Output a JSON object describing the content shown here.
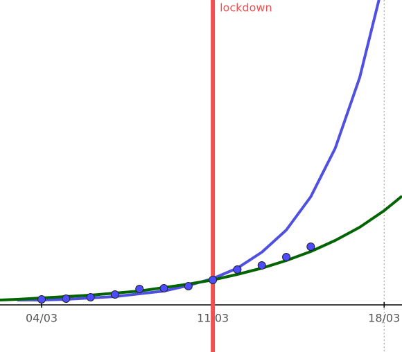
{
  "chart_data": {
    "type": "line",
    "xlim": [
      2.3,
      18.73
    ],
    "ylim": [
      -68,
      440
    ],
    "xticks": [
      {
        "value": 4,
        "label": "04/03"
      },
      {
        "value": 11,
        "label": "11/03"
      },
      {
        "value": 18,
        "label": "18/03"
      }
    ],
    "guide_x": 18,
    "axis_color": "#000000",
    "series": [
      {
        "style": "line",
        "color": "#5050e0",
        "x": [
          3,
          4,
          5,
          6,
          7,
          8,
          9,
          10,
          11,
          12,
          13,
          14,
          15,
          16,
          17,
          17.8
        ],
        "values": [
          7,
          7,
          8,
          10,
          12,
          16,
          20,
          28,
          38,
          53,
          76,
          108,
          156,
          226,
          328,
          442
        ]
      },
      {
        "style": "line",
        "color": "#006400",
        "x": [
          2.3,
          3,
          4,
          5,
          6,
          7,
          8,
          9,
          10,
          11,
          12,
          13,
          14,
          15,
          16,
          17,
          18,
          18.73
        ],
        "values": [
          7,
          8,
          10,
          12,
          14,
          17,
          20,
          25,
          30,
          36,
          44,
          53,
          64,
          77,
          93,
          112,
          136,
          157
        ]
      },
      {
        "style": "points",
        "color": "#4d4dff",
        "x": [
          4,
          5,
          6,
          7,
          8,
          9,
          10,
          11,
          12,
          13,
          14,
          15
        ],
        "values": [
          8,
          9,
          11,
          15,
          23,
          24,
          27,
          36,
          51,
          57,
          69,
          84
        ]
      }
    ],
    "annotations": [
      {
        "text": "lockdown",
        "x": 11,
        "color": "#f05050"
      }
    ]
  }
}
